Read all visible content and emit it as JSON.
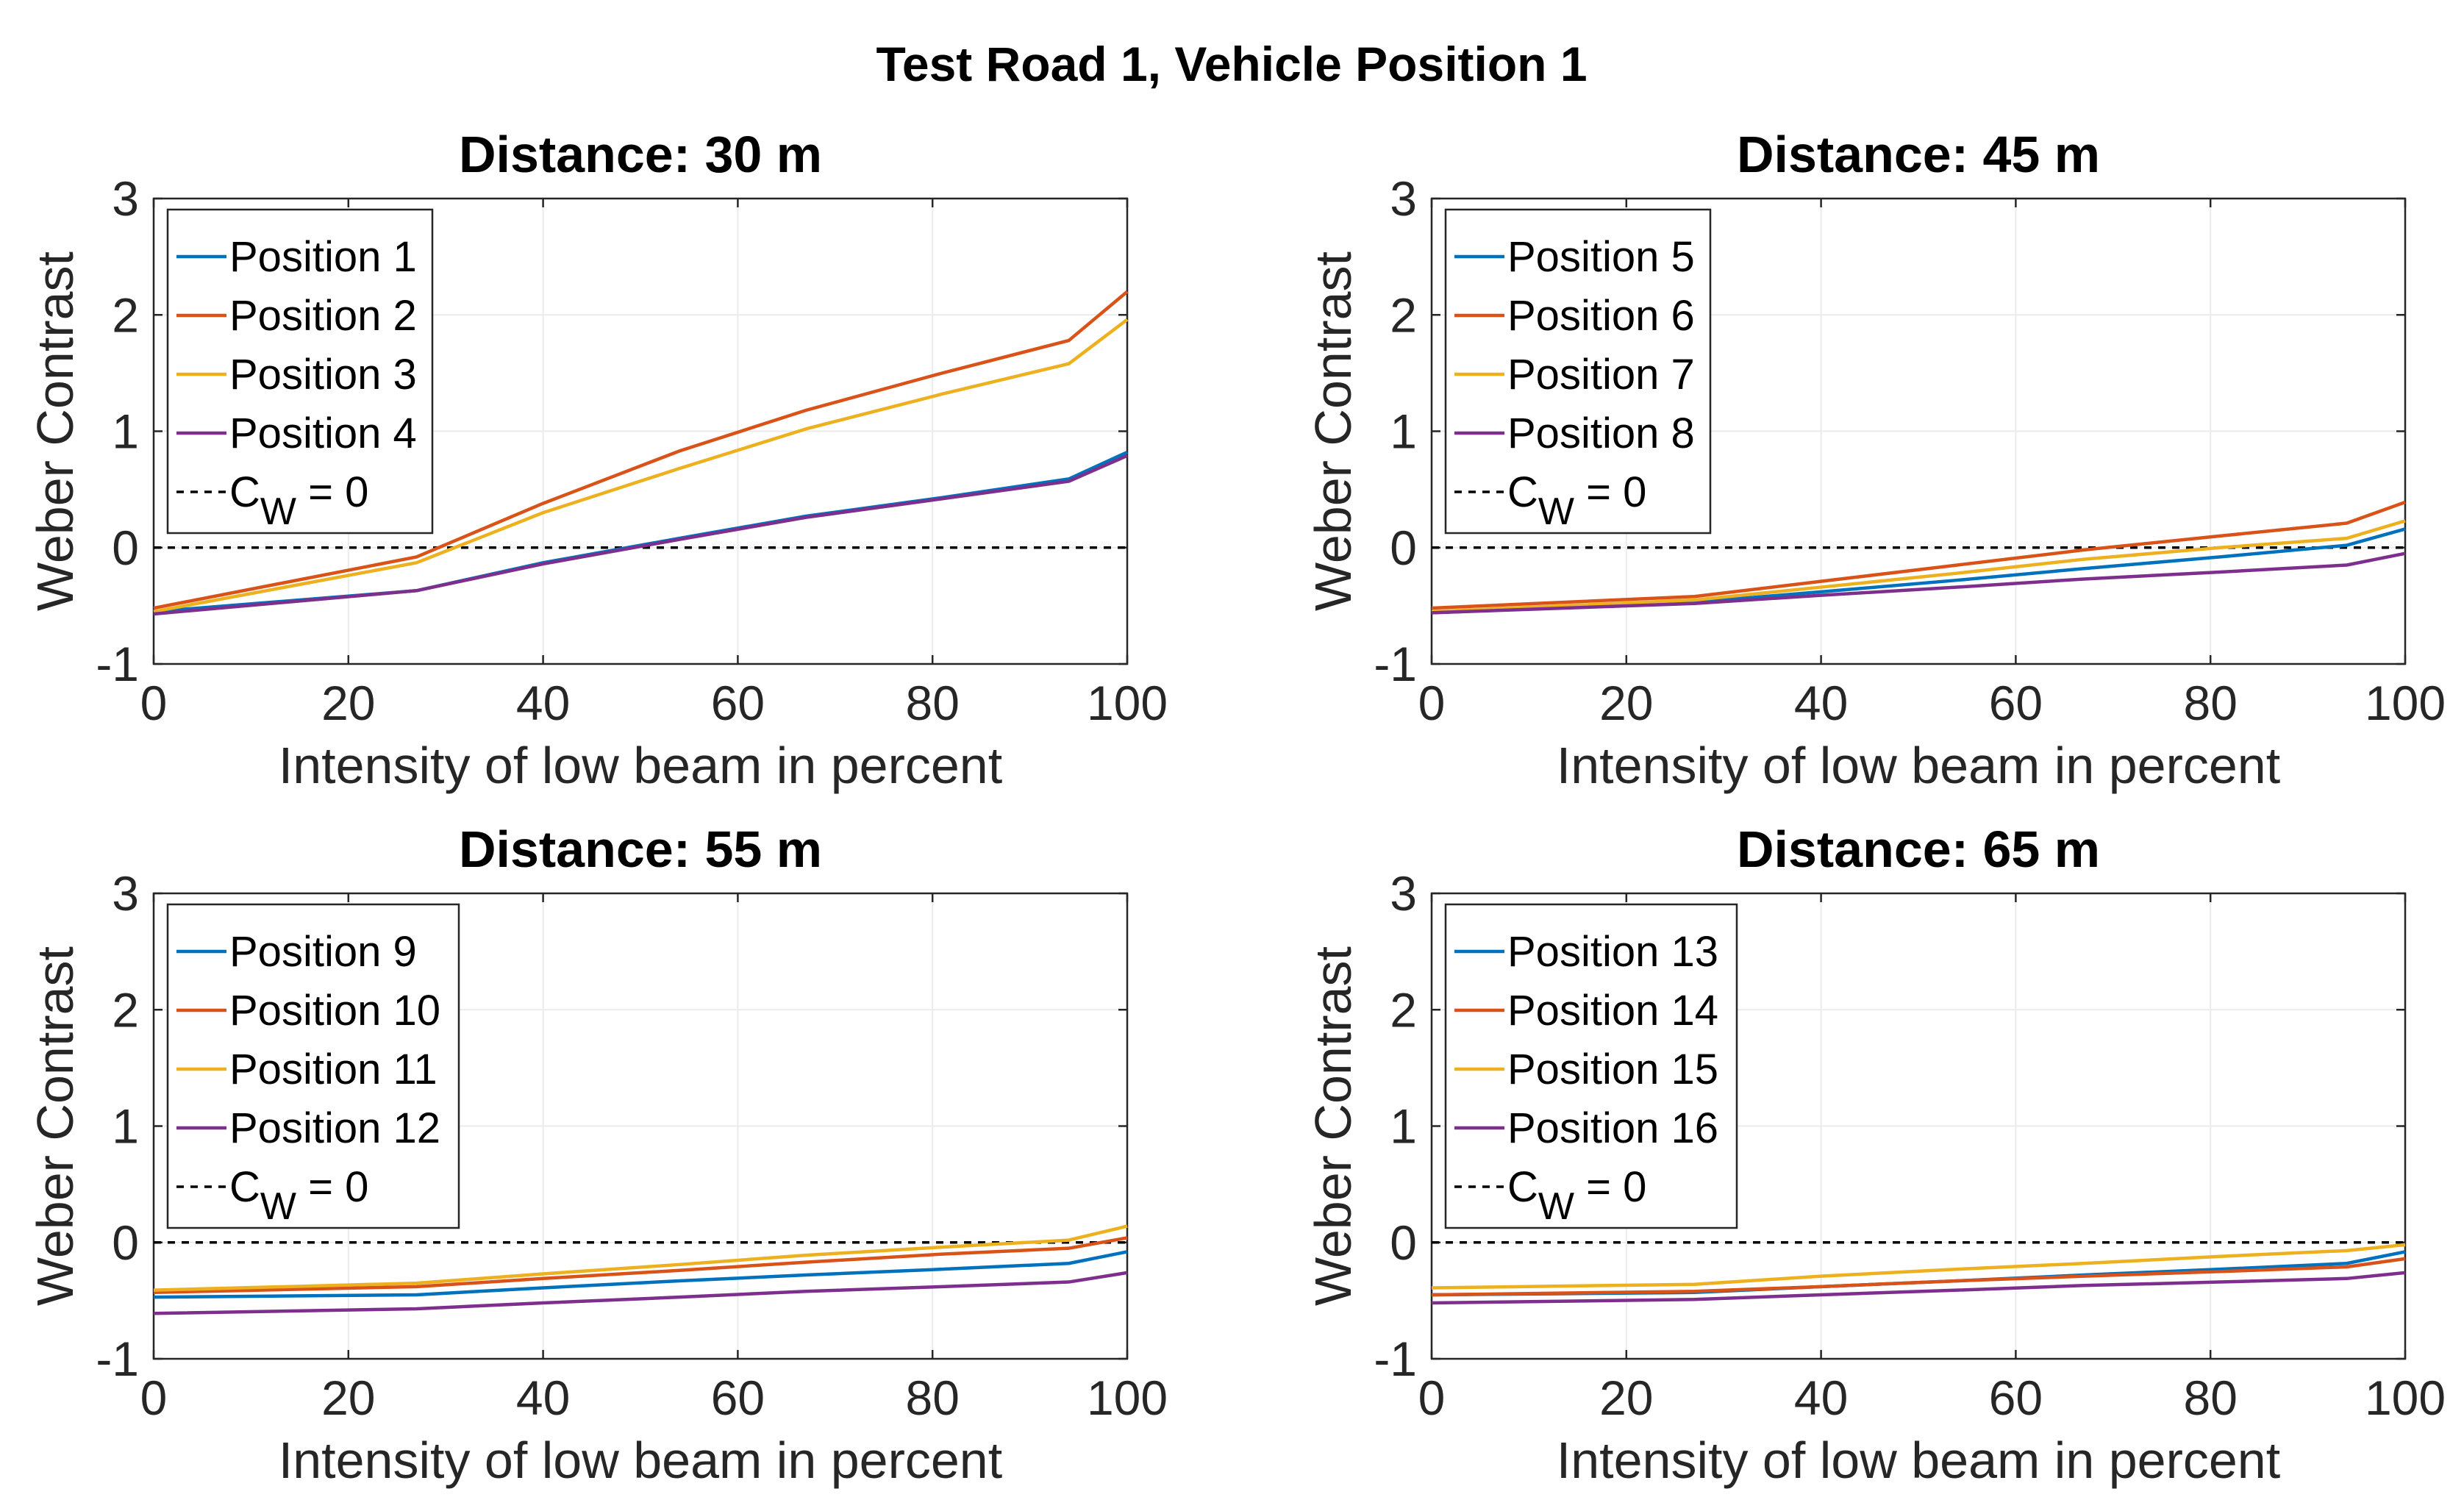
{
  "figure_title": "Test Road 1, Vehicle Position 1",
  "colors": {
    "series": [
      "#0072BD",
      "#D95319",
      "#EDB120",
      "#7E2F8E"
    ],
    "reference": "#000000"
  },
  "chart_data": [
    {
      "type": "line",
      "title": "Distance: 30 m",
      "xlabel": "Intensity of low beam in percent",
      "ylabel": "Weber Contrast",
      "xlim": [
        0,
        100
      ],
      "ylim": [
        -1,
        3
      ],
      "xticks": [
        0,
        20,
        40,
        60,
        80,
        100
      ],
      "yticks": [
        -1,
        0,
        1,
        2,
        3
      ],
      "grid": true,
      "legend_location": "top-left",
      "x": [
        0,
        27,
        40,
        54,
        67,
        81,
        94,
        100
      ],
      "series": [
        {
          "name": "Position 1",
          "values": [
            -0.55,
            -0.37,
            -0.13,
            0.08,
            0.27,
            0.43,
            0.59,
            0.82
          ]
        },
        {
          "name": "Position 2",
          "values": [
            -0.52,
            -0.08,
            0.38,
            0.83,
            1.18,
            1.5,
            1.78,
            2.2
          ]
        },
        {
          "name": "Position 3",
          "values": [
            -0.55,
            -0.13,
            0.3,
            0.68,
            1.02,
            1.32,
            1.58,
            1.96
          ]
        },
        {
          "name": "Position 4",
          "values": [
            -0.57,
            -0.37,
            -0.14,
            0.07,
            0.26,
            0.42,
            0.57,
            0.79
          ]
        }
      ],
      "reference": {
        "label": "C",
        "subscript": "W",
        "suffix": " = 0",
        "y": 0
      }
    },
    {
      "type": "line",
      "title": "Distance: 45 m",
      "xlabel": "Intensity of low beam in percent",
      "ylabel": "Weber Contrast",
      "xlim": [
        0,
        100
      ],
      "ylim": [
        -1,
        3
      ],
      "xticks": [
        0,
        20,
        40,
        60,
        80,
        100
      ],
      "yticks": [
        -1,
        0,
        1,
        2,
        3
      ],
      "grid": true,
      "legend_location": "top-left",
      "x": [
        0,
        27,
        40,
        54,
        67,
        81,
        94,
        100
      ],
      "series": [
        {
          "name": "Position 5",
          "values": [
            -0.56,
            -0.47,
            -0.38,
            -0.28,
            -0.18,
            -0.08,
            0.02,
            0.16
          ]
        },
        {
          "name": "Position 6",
          "values": [
            -0.52,
            -0.42,
            -0.29,
            -0.15,
            -0.02,
            0.1,
            0.21,
            0.39
          ]
        },
        {
          "name": "Position 7",
          "values": [
            -0.55,
            -0.45,
            -0.34,
            -0.22,
            -0.1,
            0.0,
            0.08,
            0.23
          ]
        },
        {
          "name": "Position 8",
          "values": [
            -0.56,
            -0.48,
            -0.41,
            -0.34,
            -0.27,
            -0.21,
            -0.15,
            -0.05
          ]
        }
      ],
      "reference": {
        "label": "C",
        "subscript": "W",
        "suffix": " = 0",
        "y": 0
      }
    },
    {
      "type": "line",
      "title": "Distance: 55 m",
      "xlabel": "Intensity of low beam in percent",
      "ylabel": "Weber Contrast",
      "xlim": [
        0,
        100
      ],
      "ylim": [
        -1,
        3
      ],
      "xticks": [
        0,
        20,
        40,
        60,
        80,
        100
      ],
      "yticks": [
        -1,
        0,
        1,
        2,
        3
      ],
      "grid": true,
      "legend_location": "top-left",
      "x": [
        0,
        27,
        40,
        54,
        67,
        81,
        94,
        100
      ],
      "series": [
        {
          "name": "Position 9",
          "values": [
            -0.47,
            -0.45,
            -0.39,
            -0.33,
            -0.28,
            -0.23,
            -0.18,
            -0.08
          ]
        },
        {
          "name": "Position 10",
          "values": [
            -0.43,
            -0.38,
            -0.31,
            -0.24,
            -0.17,
            -0.1,
            -0.05,
            0.04
          ]
        },
        {
          "name": "Position 11",
          "values": [
            -0.41,
            -0.35,
            -0.27,
            -0.19,
            -0.11,
            -0.04,
            0.02,
            0.14
          ]
        },
        {
          "name": "Position 12",
          "values": [
            -0.61,
            -0.57,
            -0.52,
            -0.47,
            -0.42,
            -0.38,
            -0.34,
            -0.26
          ]
        }
      ],
      "reference": {
        "label": "C",
        "subscript": "W",
        "suffix": " = 0",
        "y": 0
      }
    },
    {
      "type": "line",
      "title": "Distance: 65 m",
      "xlabel": "Intensity of low beam in percent",
      "ylabel": "Weber Contrast",
      "xlim": [
        0,
        100
      ],
      "ylim": [
        -1,
        3
      ],
      "xticks": [
        0,
        20,
        40,
        60,
        80,
        100
      ],
      "yticks": [
        -1,
        0,
        1,
        2,
        3
      ],
      "grid": true,
      "legend_location": "top-left",
      "x": [
        0,
        27,
        40,
        54,
        67,
        81,
        94,
        100
      ],
      "series": [
        {
          "name": "Position 13",
          "values": [
            -0.45,
            -0.43,
            -0.38,
            -0.33,
            -0.28,
            -0.23,
            -0.18,
            -0.08
          ]
        },
        {
          "name": "Position 14",
          "values": [
            -0.45,
            -0.42,
            -0.38,
            -0.33,
            -0.29,
            -0.25,
            -0.21,
            -0.14
          ]
        },
        {
          "name": "Position 15",
          "values": [
            -0.39,
            -0.36,
            -0.29,
            -0.23,
            -0.18,
            -0.12,
            -0.07,
            -0.02
          ]
        },
        {
          "name": "Position 16",
          "values": [
            -0.52,
            -0.49,
            -0.45,
            -0.41,
            -0.37,
            -0.34,
            -0.31,
            -0.26
          ]
        }
      ],
      "reference": {
        "label": "C",
        "subscript": "W",
        "suffix": " = 0",
        "y": 0
      }
    }
  ]
}
